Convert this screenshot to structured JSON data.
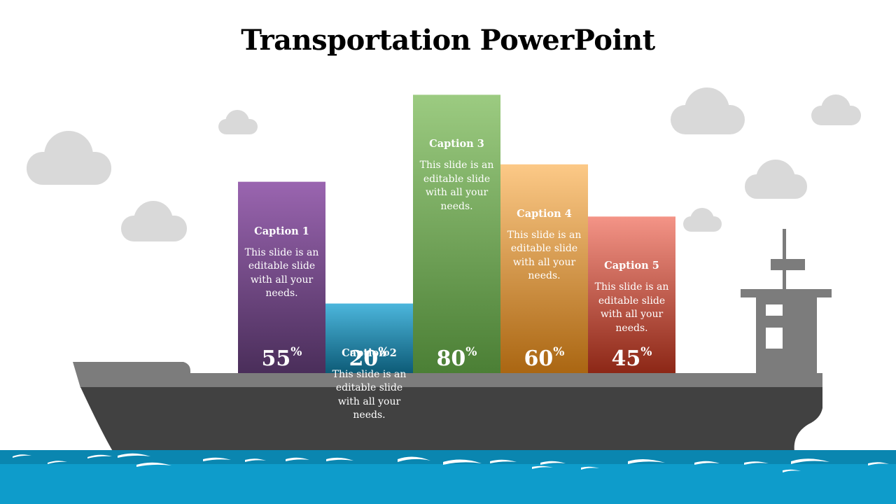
{
  "slide": {
    "title": "Transportation PowerPoint"
  },
  "colors": {
    "hull": "#414141",
    "deck": "#7c7c7c",
    "cloud": "#d9d9d9",
    "sea": "#0e9ccb",
    "sea_dark": "#0a7fa6"
  },
  "chart_data": {
    "type": "bar",
    "categories": [
      "Caption 1",
      "Caption 2",
      "Caption 3",
      "Caption 4",
      "Caption 5"
    ],
    "values": [
      55,
      20,
      80,
      60,
      45
    ],
    "value_suffix": "%",
    "ylim": [
      0,
      100
    ]
  },
  "bars": [
    {
      "caption": "Caption 1",
      "text": "This slide is an editable slide with all your needs.",
      "value": "55",
      "unit": "%",
      "color_top": "#9a65b0",
      "color_bottom": "#4a2e5a"
    },
    {
      "caption": "Caption 2",
      "text": "This slide is an editable slide with all your needs.",
      "value": "20",
      "unit": "%",
      "color_top": "#4cb6dc",
      "color_bottom": "#0d5b77"
    },
    {
      "caption": "Caption 3",
      "text": "This slide is an editable slide with all your needs.",
      "value": "80",
      "unit": "%",
      "color_top": "#9ccb81",
      "color_bottom": "#4b7f35"
    },
    {
      "caption": "Caption 4",
      "text": "This slide is an editable slide with all your needs.",
      "value": "60",
      "unit": "%",
      "color_top": "#fcc987",
      "color_bottom": "#aa6612"
    },
    {
      "caption": "Caption 5",
      "text": "This slide is an editable slide with all your needs.",
      "value": "45",
      "unit": "%",
      "color_top": "#f49487",
      "color_bottom": "#8c2716"
    }
  ]
}
